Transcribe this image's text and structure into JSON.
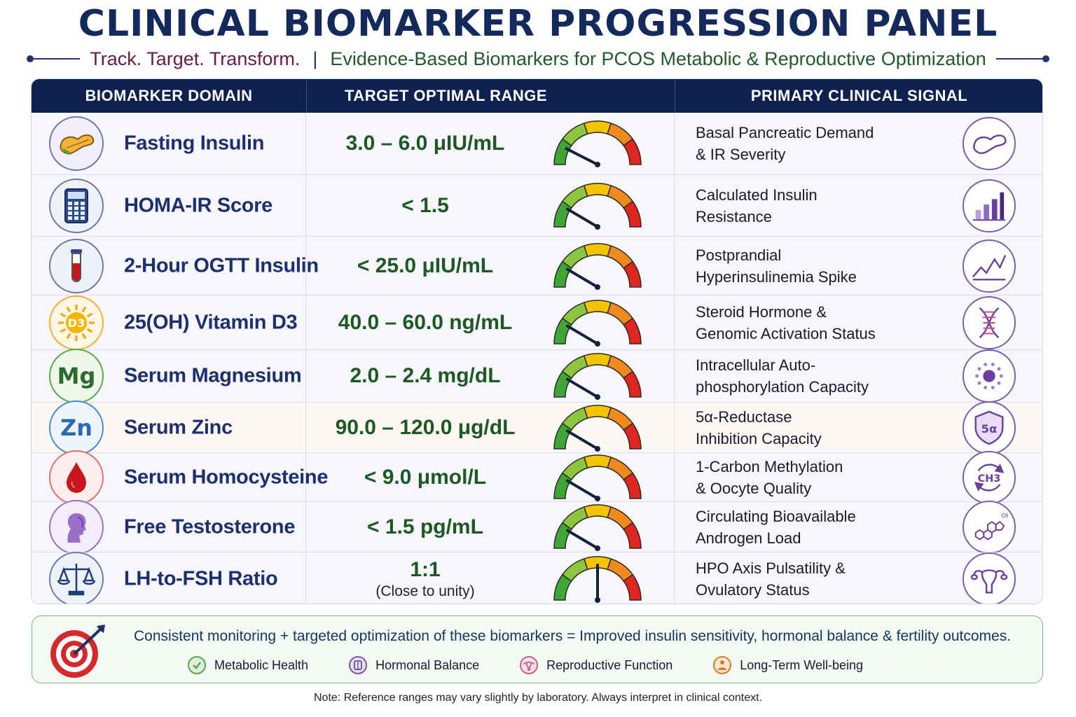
{
  "title": "CLINICAL BIOMARKER PROGRESSION PANEL",
  "tagline": {
    "left": "Track. Target. Transform.",
    "separator": "|",
    "right": "Evidence-Based Biomarkers for PCOS Metabolic & Reproductive Optimization"
  },
  "table": {
    "headers": [
      "BIOMARKER DOMAIN",
      "TARGET OPTIMAL RANGE",
      "PRIMARY CLINICAL SIGNAL"
    ],
    "rows": [
      {
        "name": "Fasting Insulin",
        "icon": "pancreas-icon",
        "range": "3.0 – 6.0 μIU/mL",
        "range_sub": "",
        "signal": [
          "Basal Pancreatic Demand",
          "& IR Severity"
        ],
        "signal_icon": "pancreas-outline-icon",
        "needle": 0.15
      },
      {
        "name": "HOMA-IR Score",
        "icon": "calculator-icon",
        "range": "< 1.5",
        "range_sub": "",
        "signal": [
          "Calculated Insulin",
          "Resistance"
        ],
        "signal_icon": "bar-chart-icon",
        "needle": 0.17
      },
      {
        "name": "2-Hour OGTT Insulin",
        "icon": "test-tube-icon",
        "range": "< 25.0 μIU/mL",
        "range_sub": "",
        "signal": [
          "Postprandial",
          "Hyperinsulinemia Spike"
        ],
        "signal_icon": "line-chart-icon",
        "needle": 0.17
      },
      {
        "name": "25(OH) Vitamin D3",
        "icon": "sun-d3-icon",
        "icon_text": "D3",
        "range": "40.0 – 60.0 ng/mL",
        "range_sub": "",
        "signal": [
          "Steroid Hormone &",
          "Genomic Activation Status"
        ],
        "signal_icon": "dna-icon",
        "needle": 0.17
      },
      {
        "name": "Serum Magnesium",
        "icon": "magnesium-icon",
        "icon_text": "Mg",
        "range": "2.0 – 2.4 mg/dL",
        "range_sub": "",
        "signal": [
          "Intracellular Auto-",
          "phosphorylation Capacity"
        ],
        "signal_icon": "cell-icon",
        "needle": 0.17
      },
      {
        "name": "Serum Zinc",
        "icon": "zinc-icon",
        "icon_text": "Zn",
        "range": "90.0 – 120.0 μg/dL",
        "range_sub": "",
        "signal": [
          "5α-Reductase",
          "Inhibition Capacity"
        ],
        "signal_icon": "shield-5a-icon",
        "signal_icon_text": "5α",
        "needle": 0.17
      },
      {
        "name": "Serum Homocysteine",
        "icon": "blood-drop-icon",
        "range": "< 9.0 μmol/L",
        "range_sub": "",
        "signal": [
          "1-Carbon Methylation",
          "& Oocyte Quality"
        ],
        "signal_icon": "methyl-cycle-icon",
        "signal_icon_text": "CH3",
        "needle": 0.17
      },
      {
        "name": "Free Testosterone",
        "icon": "woman-profile-icon",
        "range": "< 1.5 pg/mL",
        "range_sub": "",
        "signal": [
          "Circulating Bioavailable",
          "Androgen Load"
        ],
        "signal_icon": "steroid-molecule-icon",
        "signal_icon_text": "OH",
        "needle": 0.17
      },
      {
        "name": "LH-to-FSH Ratio",
        "icon": "balance-scale-icon",
        "range": "1:1",
        "range_sub": "(Close to unity)",
        "signal": [
          "HPO Axis Pulsatility &",
          "Ovulatory Status"
        ],
        "signal_icon": "uterus-icon",
        "needle": 0.5
      }
    ]
  },
  "footer": {
    "main": "Consistent monitoring + targeted optimization of these biomarkers = Improved insulin sensitivity, hormonal balance & fertility outcomes.",
    "items": [
      {
        "label": "Metabolic Health",
        "icon": "check-icon",
        "color": "#5aa845"
      },
      {
        "label": "Hormonal Balance",
        "icon": "hormone-icon",
        "color": "#7a55b0"
      },
      {
        "label": "Reproductive Function",
        "icon": "uterus-small-icon",
        "color": "#d65a8e"
      },
      {
        "label": "Long-Term Well-being",
        "icon": "person-icon",
        "color": "#e07a1e"
      }
    ]
  },
  "note": "Note: Reference ranges may vary slightly by laboratory. Always interpret in clinical context.",
  "colors": {
    "navy": "#0f2150",
    "green_text": "#1d5a23",
    "gauge": [
      "#3fa535",
      "#8cc63f",
      "#f5c400",
      "#f08a1c",
      "#e0261f"
    ]
  }
}
